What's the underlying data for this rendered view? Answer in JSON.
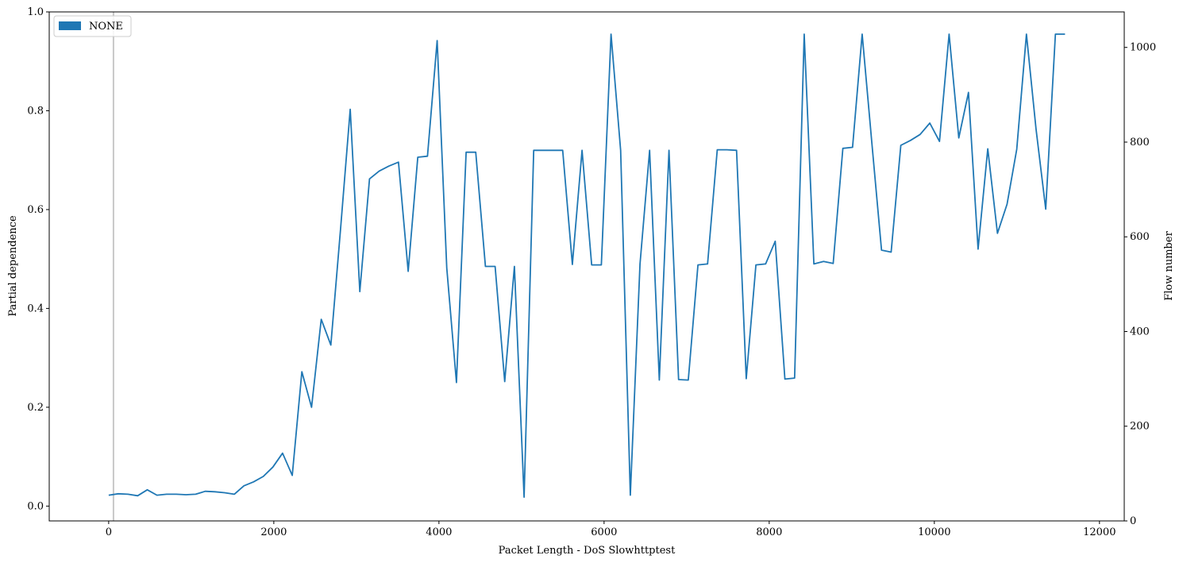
{
  "chart_data": {
    "type": "line",
    "xlabel": "Packet Length - DoS Slowhttptest",
    "ylabel": "Partial dependence",
    "y2label": "Flow number",
    "xlim": [
      -720,
      12300
    ],
    "ylim": [
      -0.03,
      1.0
    ],
    "y2lim": [
      0,
      1075
    ],
    "xticks": [
      0,
      2000,
      4000,
      6000,
      8000,
      10000,
      12000
    ],
    "yticks": [
      0.0,
      0.2,
      0.4,
      0.6,
      0.8,
      1.0
    ],
    "y2ticks": [
      0,
      200,
      400,
      600,
      800,
      1000
    ],
    "legend": {
      "position": "top-left",
      "entries": [
        {
          "label": "NONE",
          "color": "#1f77b4"
        }
      ]
    },
    "histogram_bar": {
      "x": 58,
      "axis": "y2",
      "value": 1075
    },
    "series": [
      {
        "color": "#1f77b4",
        "x": [
          0,
          117,
          234,
          351,
          468,
          585,
          702,
          819,
          936,
          1053,
          1170,
          1287,
          1404,
          1521,
          1638,
          1755,
          1872,
          1989,
          2106,
          2223,
          2340,
          2457,
          2574,
          2691,
          2808,
          2925,
          3042,
          3159,
          3276,
          3393,
          3510,
          3627,
          3744,
          3861,
          3978,
          4095,
          4212,
          4329,
          4446,
          4563,
          4680,
          4797,
          4914,
          5031,
          5148,
          5265,
          5382,
          5499,
          5616,
          5733,
          5850,
          5967,
          6084,
          6201,
          6318,
          6435,
          6552,
          6669,
          6786,
          6903,
          7020,
          7137,
          7254,
          7371,
          7488,
          7605,
          7722,
          7839,
          7956,
          8073,
          8190,
          8307,
          8424,
          8541,
          8658,
          8775,
          8892,
          9009,
          9126,
          9243,
          9360,
          9477,
          9594,
          9711,
          9828,
          9945,
          10062,
          10179,
          10296,
          10413,
          10530,
          10647,
          10764,
          10881,
          10998,
          11115,
          11232,
          11349,
          11466,
          11583
        ],
        "y": [
          0.022,
          0.025,
          0.024,
          0.021,
          0.033,
          0.022,
          0.024,
          0.024,
          0.023,
          0.024,
          0.03,
          0.029,
          0.027,
          0.024,
          0.041,
          0.049,
          0.06,
          0.079,
          0.107,
          0.062,
          0.272,
          0.2,
          0.378,
          0.326,
          0.56,
          0.803,
          0.434,
          0.662,
          0.678,
          0.688,
          0.696,
          0.475,
          0.706,
          0.708,
          0.942,
          0.482,
          0.25,
          0.716,
          0.716,
          0.485,
          0.485,
          0.252,
          0.485,
          0.018,
          0.72,
          0.72,
          0.72,
          0.72,
          0.489,
          0.72,
          0.488,
          0.488,
          0.955,
          0.72,
          0.022,
          0.49,
          0.72,
          0.255,
          0.72,
          0.256,
          0.255,
          0.488,
          0.49,
          0.721,
          0.721,
          0.72,
          0.258,
          0.488,
          0.49,
          0.536,
          0.257,
          0.259,
          0.955,
          0.49,
          0.495,
          0.491,
          0.724,
          0.726,
          0.955,
          0.735,
          0.518,
          0.514,
          0.73,
          0.74,
          0.752,
          0.775,
          0.738,
          0.955,
          0.745,
          0.837,
          0.52,
          0.723,
          0.552,
          0.611,
          0.722,
          0.955,
          0.763,
          0.601,
          0.955,
          0.955
        ]
      }
    ]
  }
}
